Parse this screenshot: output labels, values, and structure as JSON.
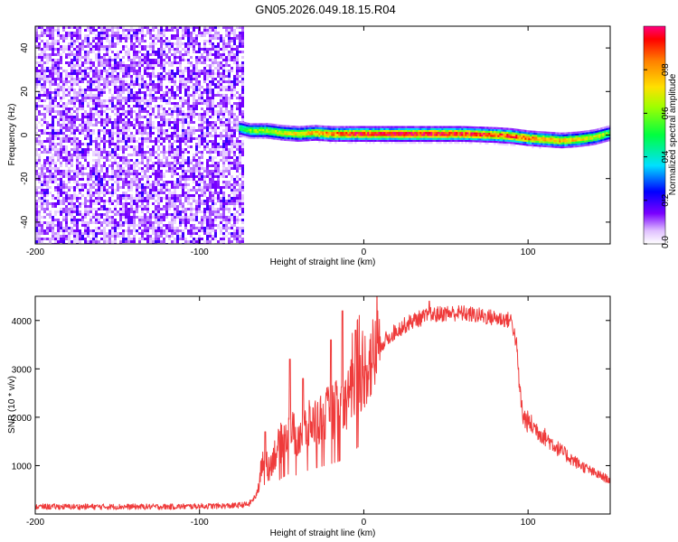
{
  "title": "GN05.2026.049.18.15.R04",
  "chart_data": [
    {
      "type": "heatmap",
      "xlabel": "Height of straight line (km)",
      "ylabel": "Frequency (Hz)",
      "xlim": [
        -200,
        150
      ],
      "ylim": [
        -50,
        50
      ],
      "xticks": [
        -200,
        -100,
        0,
        100
      ],
      "yticks": [
        -40,
        -20,
        0,
        20,
        40
      ],
      "colorbar": {
        "label": "Normalized spectral amplitude",
        "range": [
          0,
          1
        ],
        "ticks": [
          "0.0",
          "0.2",
          "0.4",
          "0.6",
          "0.8"
        ],
        "tick_values": [
          0,
          0.2,
          0.4,
          0.6,
          0.8
        ]
      },
      "noise_region": {
        "x": [
          -200,
          -73
        ],
        "y": [
          -50,
          50
        ],
        "typical_amplitude": 0.08
      },
      "ridge": {
        "x": [
          -75,
          -70,
          -60,
          -50,
          -40,
          -30,
          -20,
          -10,
          0,
          20,
          40,
          60,
          80,
          90,
          100,
          110,
          120,
          130,
          140,
          150
        ],
        "frequency": [
          3,
          2,
          2,
          1,
          0.5,
          1,
          0.5,
          0.5,
          0.5,
          0.5,
          0.5,
          0.5,
          0,
          -0.5,
          -1.5,
          -2,
          -2.5,
          -2,
          -1,
          1
        ],
        "amplitude": [
          0.5,
          0.6,
          0.65,
          0.7,
          0.75,
          0.8,
          0.85,
          0.9,
          0.95,
          0.98,
          1,
          0.95,
          0.9,
          0.9,
          0.85,
          0.8,
          0.8,
          0.75,
          0.7,
          0.6
        ]
      },
      "colors": {
        "low": "#7a00ff",
        "mid": "#00ff80",
        "high": "#ff0000"
      }
    },
    {
      "type": "line",
      "xlabel": "Height of straight line (km)",
      "ylabel": "SNR (10 * v/v)",
      "xlim": [
        -200,
        150
      ],
      "ylim": [
        0,
        4500
      ],
      "xticks": [
        -200,
        -100,
        0,
        100
      ],
      "yticks": [
        1000,
        2000,
        3000,
        4000
      ],
      "series": [
        {
          "color": "#ef3b3b",
          "x": [
            -200,
            -180,
            -160,
            -140,
            -120,
            -100,
            -80,
            -70,
            -65,
            -62,
            -60,
            -58,
            -55,
            -50,
            -45,
            -40,
            -35,
            -30,
            -25,
            -20,
            -15,
            -10,
            -5,
            0,
            5,
            10,
            20,
            30,
            40,
            50,
            60,
            70,
            80,
            90,
            93,
            95,
            97,
            100,
            110,
            120,
            130,
            140,
            150
          ],
          "y": [
            150,
            150,
            150,
            150,
            150,
            160,
            170,
            200,
            400,
            1000,
            1300,
            900,
            1200,
            1500,
            1700,
            1600,
            1800,
            1900,
            2000,
            2100,
            2200,
            2400,
            2700,
            3000,
            3200,
            3500,
            3800,
            4000,
            4100,
            4150,
            4150,
            4100,
            4050,
            4000,
            3500,
            2500,
            2000,
            1900,
            1600,
            1300,
            1050,
            850,
            700
          ]
        }
      ],
      "spikes": [
        {
          "x": -60,
          "y": 1700
        },
        {
          "x": -45,
          "y": 3200
        },
        {
          "x": -37,
          "y": 2800
        },
        {
          "x": -13,
          "y": 4200
        },
        {
          "x": -20,
          "y": 3600
        },
        {
          "x": -5,
          "y": 3800
        },
        {
          "x": 40,
          "y": 4400
        }
      ]
    }
  ]
}
